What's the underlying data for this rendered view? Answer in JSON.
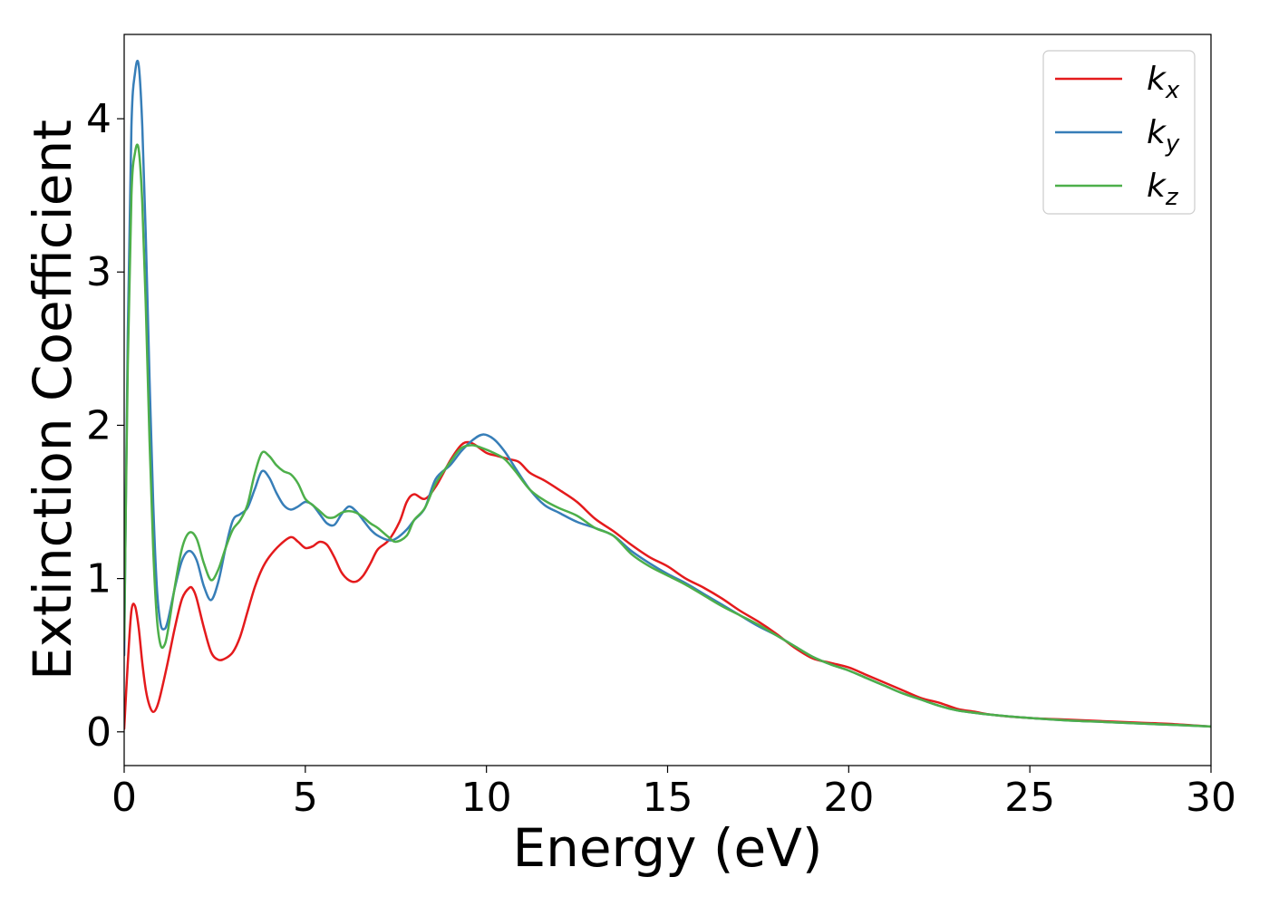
{
  "chart_data": {
    "type": "line",
    "xlabel": "Energy (eV)",
    "ylabel": "Extinction Coefficient",
    "xlim": [
      0,
      30
    ],
    "ylim": [
      -0.22,
      4.55
    ],
    "xticks": [
      0,
      5,
      10,
      15,
      20,
      25,
      30
    ],
    "xtick_labels": [
      "0",
      "5",
      "10",
      "15",
      "20",
      "25",
      "30"
    ],
    "yticks": [
      0,
      1,
      2,
      3,
      4
    ],
    "ytick_labels": [
      "0",
      "1",
      "2",
      "3",
      "4"
    ],
    "grid": false,
    "legend_position": "top-right",
    "series": [
      {
        "name": "k_x",
        "legend_main": "k",
        "legend_sub": "x",
        "color": "#e41a1c",
        "x": [
          0,
          0.1,
          0.2,
          0.3,
          0.4,
          0.5,
          0.6,
          0.7,
          0.8,
          0.9,
          1.0,
          1.2,
          1.4,
          1.6,
          1.8,
          1.9,
          2.0,
          2.2,
          2.4,
          2.6,
          2.8,
          3.0,
          3.2,
          3.4,
          3.6,
          3.8,
          4.0,
          4.3,
          4.6,
          4.8,
          5.0,
          5.2,
          5.4,
          5.6,
          5.8,
          6.0,
          6.2,
          6.4,
          6.6,
          6.8,
          7.0,
          7.3,
          7.6,
          7.8,
          8.0,
          8.3,
          8.6,
          9.0,
          9.3,
          9.5,
          9.7,
          10.0,
          10.3,
          10.6,
          10.9,
          11.2,
          11.6,
          12.0,
          12.5,
          13.0,
          13.5,
          14.0,
          14.5,
          15.0,
          15.5,
          16.0,
          16.5,
          17.0,
          17.5,
          18.0,
          18.5,
          19.0,
          19.5,
          20.0,
          20.5,
          21.0,
          21.5,
          22.0,
          22.5,
          23.0,
          23.5,
          24.0,
          25.0,
          26.0,
          27.0,
          28.0,
          29.0,
          30.0
        ],
        "values": [
          0.02,
          0.45,
          0.79,
          0.82,
          0.68,
          0.45,
          0.27,
          0.17,
          0.13,
          0.16,
          0.24,
          0.45,
          0.68,
          0.87,
          0.94,
          0.93,
          0.87,
          0.68,
          0.52,
          0.47,
          0.48,
          0.52,
          0.62,
          0.78,
          0.94,
          1.06,
          1.14,
          1.22,
          1.27,
          1.24,
          1.2,
          1.21,
          1.24,
          1.22,
          1.14,
          1.04,
          0.99,
          0.98,
          1.02,
          1.1,
          1.19,
          1.25,
          1.37,
          1.5,
          1.55,
          1.52,
          1.6,
          1.77,
          1.87,
          1.89,
          1.87,
          1.82,
          1.8,
          1.78,
          1.76,
          1.69,
          1.64,
          1.58,
          1.5,
          1.39,
          1.31,
          1.22,
          1.14,
          1.08,
          1.0,
          0.94,
          0.87,
          0.79,
          0.72,
          0.64,
          0.55,
          0.48,
          0.45,
          0.42,
          0.37,
          0.32,
          0.27,
          0.22,
          0.19,
          0.15,
          0.13,
          0.11,
          0.09,
          0.08,
          0.07,
          0.06,
          0.05,
          0.035
        ]
      },
      {
        "name": "k_y",
        "legend_main": "k",
        "legend_sub": "y",
        "color": "#377eb8",
        "x": [
          0,
          0.1,
          0.2,
          0.3,
          0.4,
          0.5,
          0.6,
          0.7,
          0.8,
          0.9,
          1.0,
          1.1,
          1.2,
          1.4,
          1.6,
          1.8,
          2.0,
          2.2,
          2.4,
          2.6,
          2.8,
          3.0,
          3.2,
          3.4,
          3.6,
          3.8,
          4.0,
          4.2,
          4.4,
          4.6,
          4.8,
          5.0,
          5.2,
          5.4,
          5.6,
          5.8,
          6.0,
          6.2,
          6.4,
          6.6,
          6.8,
          7.0,
          7.3,
          7.5,
          7.8,
          8.0,
          8.3,
          8.6,
          9.0,
          9.3,
          9.6,
          9.9,
          10.2,
          10.5,
          10.8,
          11.2,
          11.6,
          12.0,
          12.5,
          13.0,
          13.5,
          14.0,
          14.5,
          15.0,
          15.5,
          16.0,
          16.5,
          17.0,
          17.5,
          18.0,
          18.5,
          19.0,
          19.5,
          20.0,
          20.5,
          21.0,
          21.5,
          22.0,
          22.5,
          23.0,
          24.0,
          25.0,
          26.0,
          27.0,
          28.0,
          29.0,
          30.0
        ],
        "values": [
          0.5,
          2.6,
          3.95,
          4.3,
          4.35,
          3.95,
          3.2,
          2.3,
          1.5,
          0.95,
          0.71,
          0.67,
          0.72,
          0.94,
          1.12,
          1.18,
          1.12,
          0.95,
          0.86,
          0.98,
          1.2,
          1.38,
          1.42,
          1.46,
          1.58,
          1.7,
          1.66,
          1.56,
          1.48,
          1.45,
          1.47,
          1.5,
          1.48,
          1.42,
          1.36,
          1.35,
          1.42,
          1.47,
          1.44,
          1.38,
          1.32,
          1.28,
          1.25,
          1.26,
          1.32,
          1.38,
          1.46,
          1.65,
          1.74,
          1.83,
          1.9,
          1.94,
          1.91,
          1.83,
          1.72,
          1.58,
          1.48,
          1.43,
          1.37,
          1.33,
          1.28,
          1.18,
          1.1,
          1.03,
          0.97,
          0.9,
          0.83,
          0.76,
          0.69,
          0.63,
          0.56,
          0.49,
          0.44,
          0.4,
          0.35,
          0.3,
          0.25,
          0.21,
          0.17,
          0.14,
          0.11,
          0.09,
          0.075,
          0.065,
          0.055,
          0.045,
          0.035
        ]
      },
      {
        "name": "k_z",
        "legend_main": "k",
        "legend_sub": "z",
        "color": "#4daf4a",
        "x": [
          0,
          0.1,
          0.2,
          0.3,
          0.4,
          0.5,
          0.6,
          0.7,
          0.8,
          0.9,
          1.0,
          1.1,
          1.2,
          1.4,
          1.6,
          1.8,
          2.0,
          2.2,
          2.4,
          2.6,
          2.8,
          3.0,
          3.2,
          3.4,
          3.6,
          3.8,
          4.0,
          4.2,
          4.4,
          4.6,
          4.8,
          5.0,
          5.2,
          5.4,
          5.6,
          5.8,
          6.0,
          6.2,
          6.4,
          6.6,
          6.8,
          7.0,
          7.3,
          7.5,
          7.8,
          8.0,
          8.3,
          8.6,
          9.0,
          9.3,
          9.6,
          9.9,
          10.2,
          10.5,
          10.8,
          11.2,
          11.6,
          12.0,
          12.5,
          13.0,
          13.5,
          14.0,
          14.5,
          15.0,
          15.5,
          16.0,
          16.5,
          17.0,
          17.5,
          18.0,
          18.5,
          19.0,
          19.5,
          20.0,
          20.5,
          21.0,
          21.5,
          22.0,
          22.5,
          23.0,
          24.0,
          25.0,
          26.0,
          27.0,
          28.0,
          29.0,
          30.0
        ],
        "values": [
          0.6,
          2.4,
          3.5,
          3.78,
          3.8,
          3.45,
          2.75,
          1.9,
          1.2,
          0.75,
          0.57,
          0.56,
          0.65,
          0.95,
          1.2,
          1.3,
          1.26,
          1.1,
          0.99,
          1.06,
          1.2,
          1.32,
          1.38,
          1.48,
          1.68,
          1.82,
          1.8,
          1.74,
          1.7,
          1.68,
          1.62,
          1.52,
          1.48,
          1.44,
          1.4,
          1.4,
          1.43,
          1.44,
          1.43,
          1.4,
          1.36,
          1.33,
          1.27,
          1.24,
          1.28,
          1.38,
          1.46,
          1.62,
          1.76,
          1.85,
          1.87,
          1.85,
          1.82,
          1.78,
          1.7,
          1.58,
          1.51,
          1.46,
          1.41,
          1.33,
          1.28,
          1.16,
          1.08,
          1.02,
          0.96,
          0.89,
          0.82,
          0.76,
          0.7,
          0.63,
          0.56,
          0.49,
          0.44,
          0.4,
          0.35,
          0.3,
          0.25,
          0.21,
          0.17,
          0.14,
          0.11,
          0.09,
          0.075,
          0.065,
          0.055,
          0.045,
          0.035
        ]
      }
    ]
  }
}
